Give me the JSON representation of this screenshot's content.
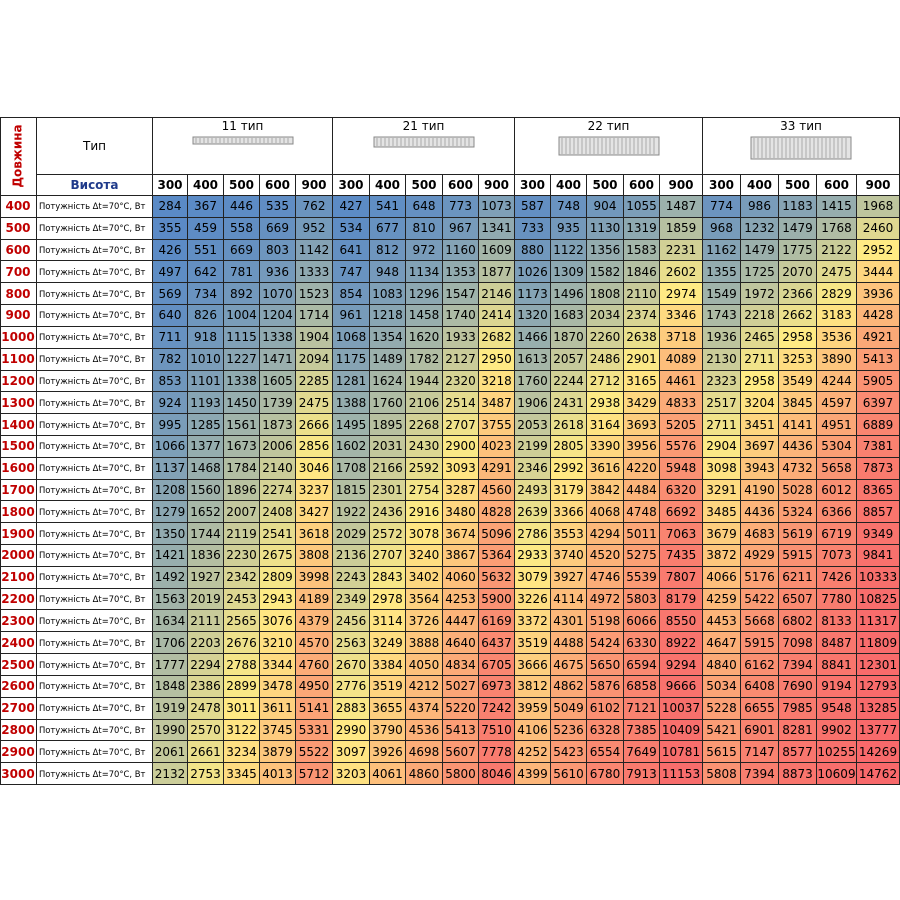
{
  "header": {
    "length_label": "Довжина",
    "type_label": "Тип",
    "height_label": "Висота",
    "power_label": "Потужність Δt=70°C, Вт",
    "groups": [
      {
        "name": "11 тип",
        "heights": [
          300,
          400,
          500,
          600,
          900
        ]
      },
      {
        "name": "21 тип",
        "heights": [
          300,
          400,
          500,
          600,
          900
        ]
      },
      {
        "name": "22 тип",
        "heights": [
          300,
          400,
          500,
          600,
          900
        ]
      },
      {
        "name": "33 тип",
        "heights": [
          300,
          400,
          500,
          600,
          900
        ]
      }
    ]
  },
  "rows": [
    {
      "length": 400,
      "values": [
        284,
        367,
        446,
        535,
        762,
        427,
        541,
        648,
        773,
        1073,
        587,
        748,
        904,
        1055,
        1487,
        774,
        986,
        1183,
        1415,
        1968
      ]
    },
    {
      "length": 500,
      "values": [
        355,
        459,
        558,
        669,
        952,
        534,
        677,
        810,
        967,
        1341,
        733,
        935,
        1130,
        1319,
        1859,
        968,
        1232,
        1479,
        1768,
        2460
      ]
    },
    {
      "length": 600,
      "values": [
        426,
        551,
        669,
        803,
        1142,
        641,
        812,
        972,
        1160,
        1609,
        880,
        1122,
        1356,
        1583,
        2231,
        1162,
        1479,
        1775,
        2122,
        2952
      ]
    },
    {
      "length": 700,
      "values": [
        497,
        642,
        781,
        936,
        1333,
        747,
        948,
        1134,
        1353,
        1877,
        1026,
        1309,
        1582,
        1846,
        2602,
        1355,
        1725,
        2070,
        2475,
        3444
      ]
    },
    {
      "length": 800,
      "values": [
        569,
        734,
        892,
        1070,
        1523,
        854,
        1083,
        1296,
        1547,
        2146,
        1173,
        1496,
        1808,
        2110,
        2974,
        1549,
        1972,
        2366,
        2829,
        3936
      ]
    },
    {
      "length": 900,
      "values": [
        640,
        826,
        1004,
        1204,
        1714,
        961,
        1218,
        1458,
        1740,
        2414,
        1320,
        1683,
        2034,
        2374,
        3346,
        1743,
        2218,
        2662,
        3183,
        4428
      ]
    },
    {
      "length": 1000,
      "values": [
        711,
        918,
        1115,
        1338,
        1904,
        1068,
        1354,
        1620,
        1933,
        2682,
        1466,
        1870,
        2260,
        2638,
        3718,
        1936,
        2465,
        2958,
        3536,
        4921
      ]
    },
    {
      "length": 1100,
      "values": [
        782,
        1010,
        1227,
        1471,
        2094,
        1175,
        1489,
        1782,
        2127,
        2950,
        1613,
        2057,
        2486,
        2901,
        4089,
        2130,
        2711,
        3253,
        3890,
        5413
      ]
    },
    {
      "length": 1200,
      "values": [
        853,
        1101,
        1338,
        1605,
        2285,
        1281,
        1624,
        1944,
        2320,
        3218,
        1760,
        2244,
        2712,
        3165,
        4461,
        2323,
        2958,
        3549,
        4244,
        5905
      ]
    },
    {
      "length": 1300,
      "values": [
        924,
        1193,
        1450,
        1739,
        2475,
        1388,
        1760,
        2106,
        2514,
        3487,
        1906,
        2431,
        2938,
        3429,
        4833,
        2517,
        3204,
        3845,
        4597,
        6397
      ]
    },
    {
      "length": 1400,
      "values": [
        995,
        1285,
        1561,
        1873,
        2666,
        1495,
        1895,
        2268,
        2707,
        3755,
        2053,
        2618,
        3164,
        3693,
        5205,
        2711,
        3451,
        4141,
        4951,
        6889
      ]
    },
    {
      "length": 1500,
      "values": [
        1066,
        1377,
        1673,
        2006,
        2856,
        1602,
        2031,
        2430,
        2900,
        4023,
        2199,
        2805,
        3390,
        3956,
        5576,
        2904,
        3697,
        4436,
        5304,
        7381
      ]
    },
    {
      "length": 1600,
      "values": [
        1137,
        1468,
        1784,
        2140,
        3046,
        1708,
        2166,
        2592,
        3093,
        4291,
        2346,
        2992,
        3616,
        4220,
        5948,
        3098,
        3943,
        4732,
        5658,
        7873
      ]
    },
    {
      "length": 1700,
      "values": [
        1208,
        1560,
        1896,
        2274,
        3237,
        1815,
        2301,
        2754,
        3287,
        4560,
        2493,
        3179,
        3842,
        4484,
        6320,
        3291,
        4190,
        5028,
        6012,
        8365
      ]
    },
    {
      "length": 1800,
      "values": [
        1279,
        1652,
        2007,
        2408,
        3427,
        1922,
        2436,
        2916,
        3480,
        4828,
        2639,
        3366,
        4068,
        4748,
        6692,
        3485,
        4436,
        5324,
        6366,
        8857
      ]
    },
    {
      "length": 1900,
      "values": [
        1350,
        1744,
        2119,
        2541,
        3618,
        2029,
        2572,
        3078,
        3674,
        5096,
        2786,
        3553,
        4294,
        5011,
        7063,
        3679,
        4683,
        5619,
        6719,
        9349
      ]
    },
    {
      "length": 2000,
      "values": [
        1421,
        1836,
        2230,
        2675,
        3808,
        2136,
        2707,
        3240,
        3867,
        5364,
        2933,
        3740,
        4520,
        5275,
        7435,
        3872,
        4929,
        5915,
        7073,
        9841
      ]
    },
    {
      "length": 2100,
      "values": [
        1492,
        1927,
        2342,
        2809,
        3998,
        2243,
        2843,
        3402,
        4060,
        5632,
        3079,
        3927,
        4746,
        5539,
        7807,
        4066,
        5176,
        6211,
        7426,
        10333
      ]
    },
    {
      "length": 2200,
      "values": [
        1563,
        2019,
        2453,
        2943,
        4189,
        2349,
        2978,
        3564,
        4253,
        5900,
        3226,
        4114,
        4972,
        5803,
        8179,
        4259,
        5422,
        6507,
        7780,
        10825
      ]
    },
    {
      "length": 2300,
      "values": [
        1634,
        2111,
        2565,
        3076,
        4379,
        2456,
        3114,
        3726,
        4447,
        6169,
        3372,
        4301,
        5198,
        6066,
        8550,
        4453,
        5668,
        6802,
        8133,
        11317
      ]
    },
    {
      "length": 2400,
      "values": [
        1706,
        2203,
        2676,
        3210,
        4570,
        2563,
        3249,
        3888,
        4640,
        6437,
        3519,
        4488,
        5424,
        6330,
        8922,
        4647,
        5915,
        7098,
        8487,
        11809
      ]
    },
    {
      "length": 2500,
      "values": [
        1777,
        2294,
        2788,
        3344,
        4760,
        2670,
        3384,
        4050,
        4834,
        6705,
        3666,
        4675,
        5650,
        6594,
        9294,
        4840,
        6162,
        7394,
        8841,
        12301
      ]
    },
    {
      "length": 2600,
      "values": [
        1848,
        2386,
        2899,
        3478,
        4950,
        2776,
        3519,
        4212,
        5027,
        6973,
        3812,
        4862,
        5876,
        6858,
        9666,
        5034,
        6408,
        7690,
        9194,
        12793
      ]
    },
    {
      "length": 2700,
      "values": [
        1919,
        2478,
        3011,
        3611,
        5141,
        2883,
        3655,
        4374,
        5220,
        7242,
        3959,
        5049,
        6102,
        7121,
        10037,
        5228,
        6655,
        7985,
        9548,
        13285
      ]
    },
    {
      "length": 2800,
      "values": [
        1990,
        2570,
        3122,
        3745,
        5331,
        2990,
        3790,
        4536,
        5413,
        7510,
        4106,
        5236,
        6328,
        7385,
        10409,
        5421,
        6901,
        8281,
        9902,
        13777
      ]
    },
    {
      "length": 2900,
      "values": [
        2061,
        2661,
        3234,
        3879,
        5522,
        3097,
        3926,
        4698,
        5607,
        7778,
        4252,
        5423,
        6554,
        7649,
        10781,
        5615,
        7147,
        8577,
        10255,
        14269
      ]
    },
    {
      "length": 3000,
      "values": [
        2132,
        2753,
        3345,
        4013,
        5712,
        3203,
        4061,
        4860,
        5800,
        8046,
        4399,
        5610,
        6780,
        7913,
        11153,
        5808,
        7394,
        8873,
        10609,
        14762
      ]
    }
  ]
}
